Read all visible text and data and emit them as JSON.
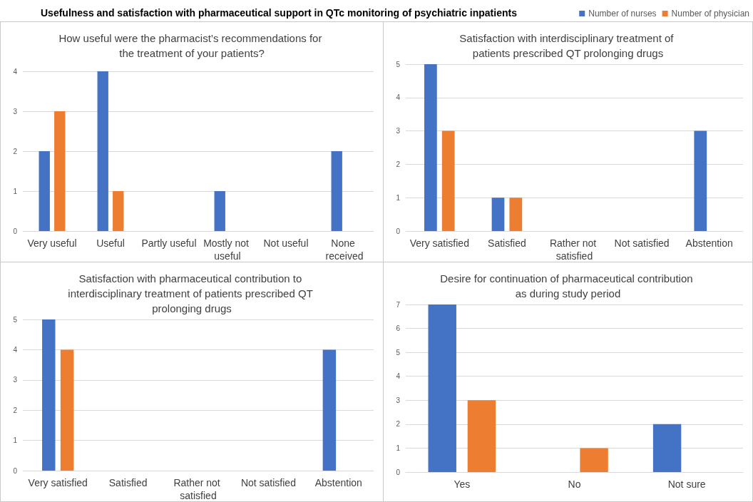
{
  "chart_data": [
    {
      "type": "bar",
      "title": "How useful were the pharmacist’s recommendations for the treatment of your patients?",
      "annotations": [
        "Usefulness and satisfaction with pharmaceutical support in QTc monitoring of psychiatric inpatients"
      ],
      "categories": [
        "Very useful",
        "Useful",
        "Partly useful",
        "Mostly not useful",
        "Not useful",
        "None received"
      ],
      "series": [
        {
          "color": "#4472c4",
          "values": [
            2,
            4,
            0,
            1,
            0,
            2
          ]
        },
        {
          "color": "#ed7d31",
          "values": [
            3,
            1,
            0,
            0,
            0,
            0
          ]
        }
      ],
      "ylim": [
        0,
        4
      ],
      "yticks": [
        0,
        1,
        2,
        3,
        4
      ],
      "grid": "y"
    },
    {
      "type": "bar",
      "title": "Satisfaction with interdisciplinary treatment of patients prescribed QT prolonging drugs",
      "categories": [
        "Very satisfied",
        "Satisfied",
        "Rather not satisfied",
        "Not satisfied",
        "Abstention"
      ],
      "series": [
        {
          "name": "Number of nurses",
          "color": "#4472c4",
          "values": [
            5,
            1,
            0,
            0,
            3
          ]
        },
        {
          "name": "Number of physician",
          "color": "#ed7d31",
          "values": [
            3,
            1,
            0,
            0,
            0
          ]
        }
      ],
      "ylim": [
        0,
        5
      ],
      "yticks": [
        0,
        1,
        2,
        3,
        4,
        5
      ],
      "grid": "y",
      "legend": "top right"
    },
    {
      "type": "bar",
      "title": "Satisfaction with pharmaceutical contribution to interdisciplinary treatment of patients prescribed QT prolonging drugs",
      "categories": [
        "Very satisfied",
        "Satisfied",
        "Rather not satisfied",
        "Not satisfied",
        "Abstention"
      ],
      "series": [
        {
          "color": "#4472c4",
          "values": [
            5,
            0,
            0,
            0,
            4
          ]
        },
        {
          "color": "#ed7d31",
          "values": [
            4,
            0,
            0,
            0,
            0
          ]
        }
      ],
      "ylim": [
        0,
        5
      ],
      "yticks": [
        0,
        1,
        2,
        3,
        4,
        5
      ],
      "grid": "y"
    },
    {
      "type": "bar",
      "title": "Desire for continuation of pharmaceutical contribution as during study period",
      "categories": [
        "Yes",
        "No",
        "Not sure"
      ],
      "series": [
        {
          "color": "#4472c4",
          "values": [
            7,
            0,
            2
          ]
        },
        {
          "color": "#ed7d31",
          "values": [
            3,
            1,
            0
          ]
        }
      ],
      "ylim": [
        0,
        7
      ],
      "yticks": [
        0,
        1,
        2,
        3,
        4,
        5,
        6,
        7
      ],
      "grid": "y"
    }
  ]
}
